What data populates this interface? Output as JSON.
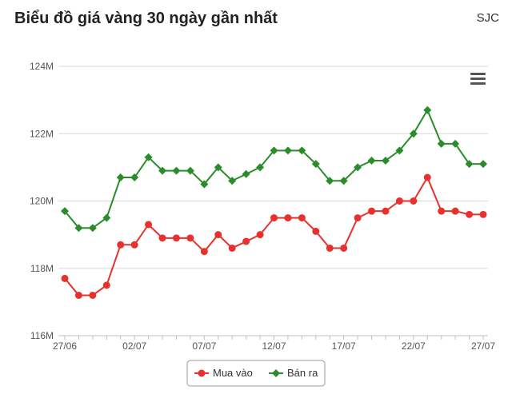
{
  "header": {
    "title": "Biểu đồ giá vàng 30 ngày gần nhất",
    "brand": "SJC"
  },
  "menu_icon": "hamburger-menu-icon",
  "chart_data": {
    "type": "line",
    "title": "Biểu đồ giá vàng 30 ngày gần nhất",
    "xlabel": "",
    "ylabel": "",
    "x": [
      "27/06",
      "28/06",
      "29/06",
      "30/06",
      "01/07",
      "02/07",
      "03/07",
      "04/07",
      "05/07",
      "06/07",
      "07/07",
      "08/07",
      "09/07",
      "10/07",
      "11/07",
      "12/07",
      "13/07",
      "14/07",
      "15/07",
      "16/07",
      "17/07",
      "18/07",
      "19/07",
      "20/07",
      "21/07",
      "22/07",
      "23/07",
      "24/07",
      "25/07",
      "26/07",
      "27/07"
    ],
    "xtick_labels": [
      "27/06",
      "02/07",
      "07/07",
      "12/07",
      "17/07",
      "22/07",
      "27/07"
    ],
    "ytick_labels": [
      "116M",
      "118M",
      "120M",
      "122M",
      "124M"
    ],
    "ylim": [
      116,
      124
    ],
    "grid": true,
    "legend": "bottom-center",
    "series": [
      {
        "name": "Mua vào",
        "color": "#e8312d",
        "marker": "circle",
        "values": [
          117.7,
          117.2,
          117.2,
          117.5,
          118.7,
          118.7,
          119.3,
          118.9,
          118.9,
          118.9,
          118.5,
          119.0,
          118.6,
          118.8,
          119.0,
          119.5,
          119.5,
          119.5,
          119.1,
          118.6,
          118.6,
          119.5,
          119.7,
          119.7,
          120.0,
          120.0,
          120.7,
          119.7,
          119.7,
          119.6,
          119.6
        ]
      },
      {
        "name": "Bán ra",
        "color": "#2a8c2a",
        "marker": "diamond",
        "values": [
          119.7,
          119.2,
          119.2,
          119.5,
          120.7,
          120.7,
          121.3,
          120.9,
          120.9,
          120.9,
          120.5,
          121.0,
          120.6,
          120.8,
          121.0,
          121.5,
          121.5,
          121.5,
          121.1,
          120.6,
          120.6,
          121.0,
          121.2,
          121.2,
          121.5,
          122.0,
          122.7,
          121.7,
          121.7,
          121.1,
          121.1
        ]
      }
    ]
  }
}
